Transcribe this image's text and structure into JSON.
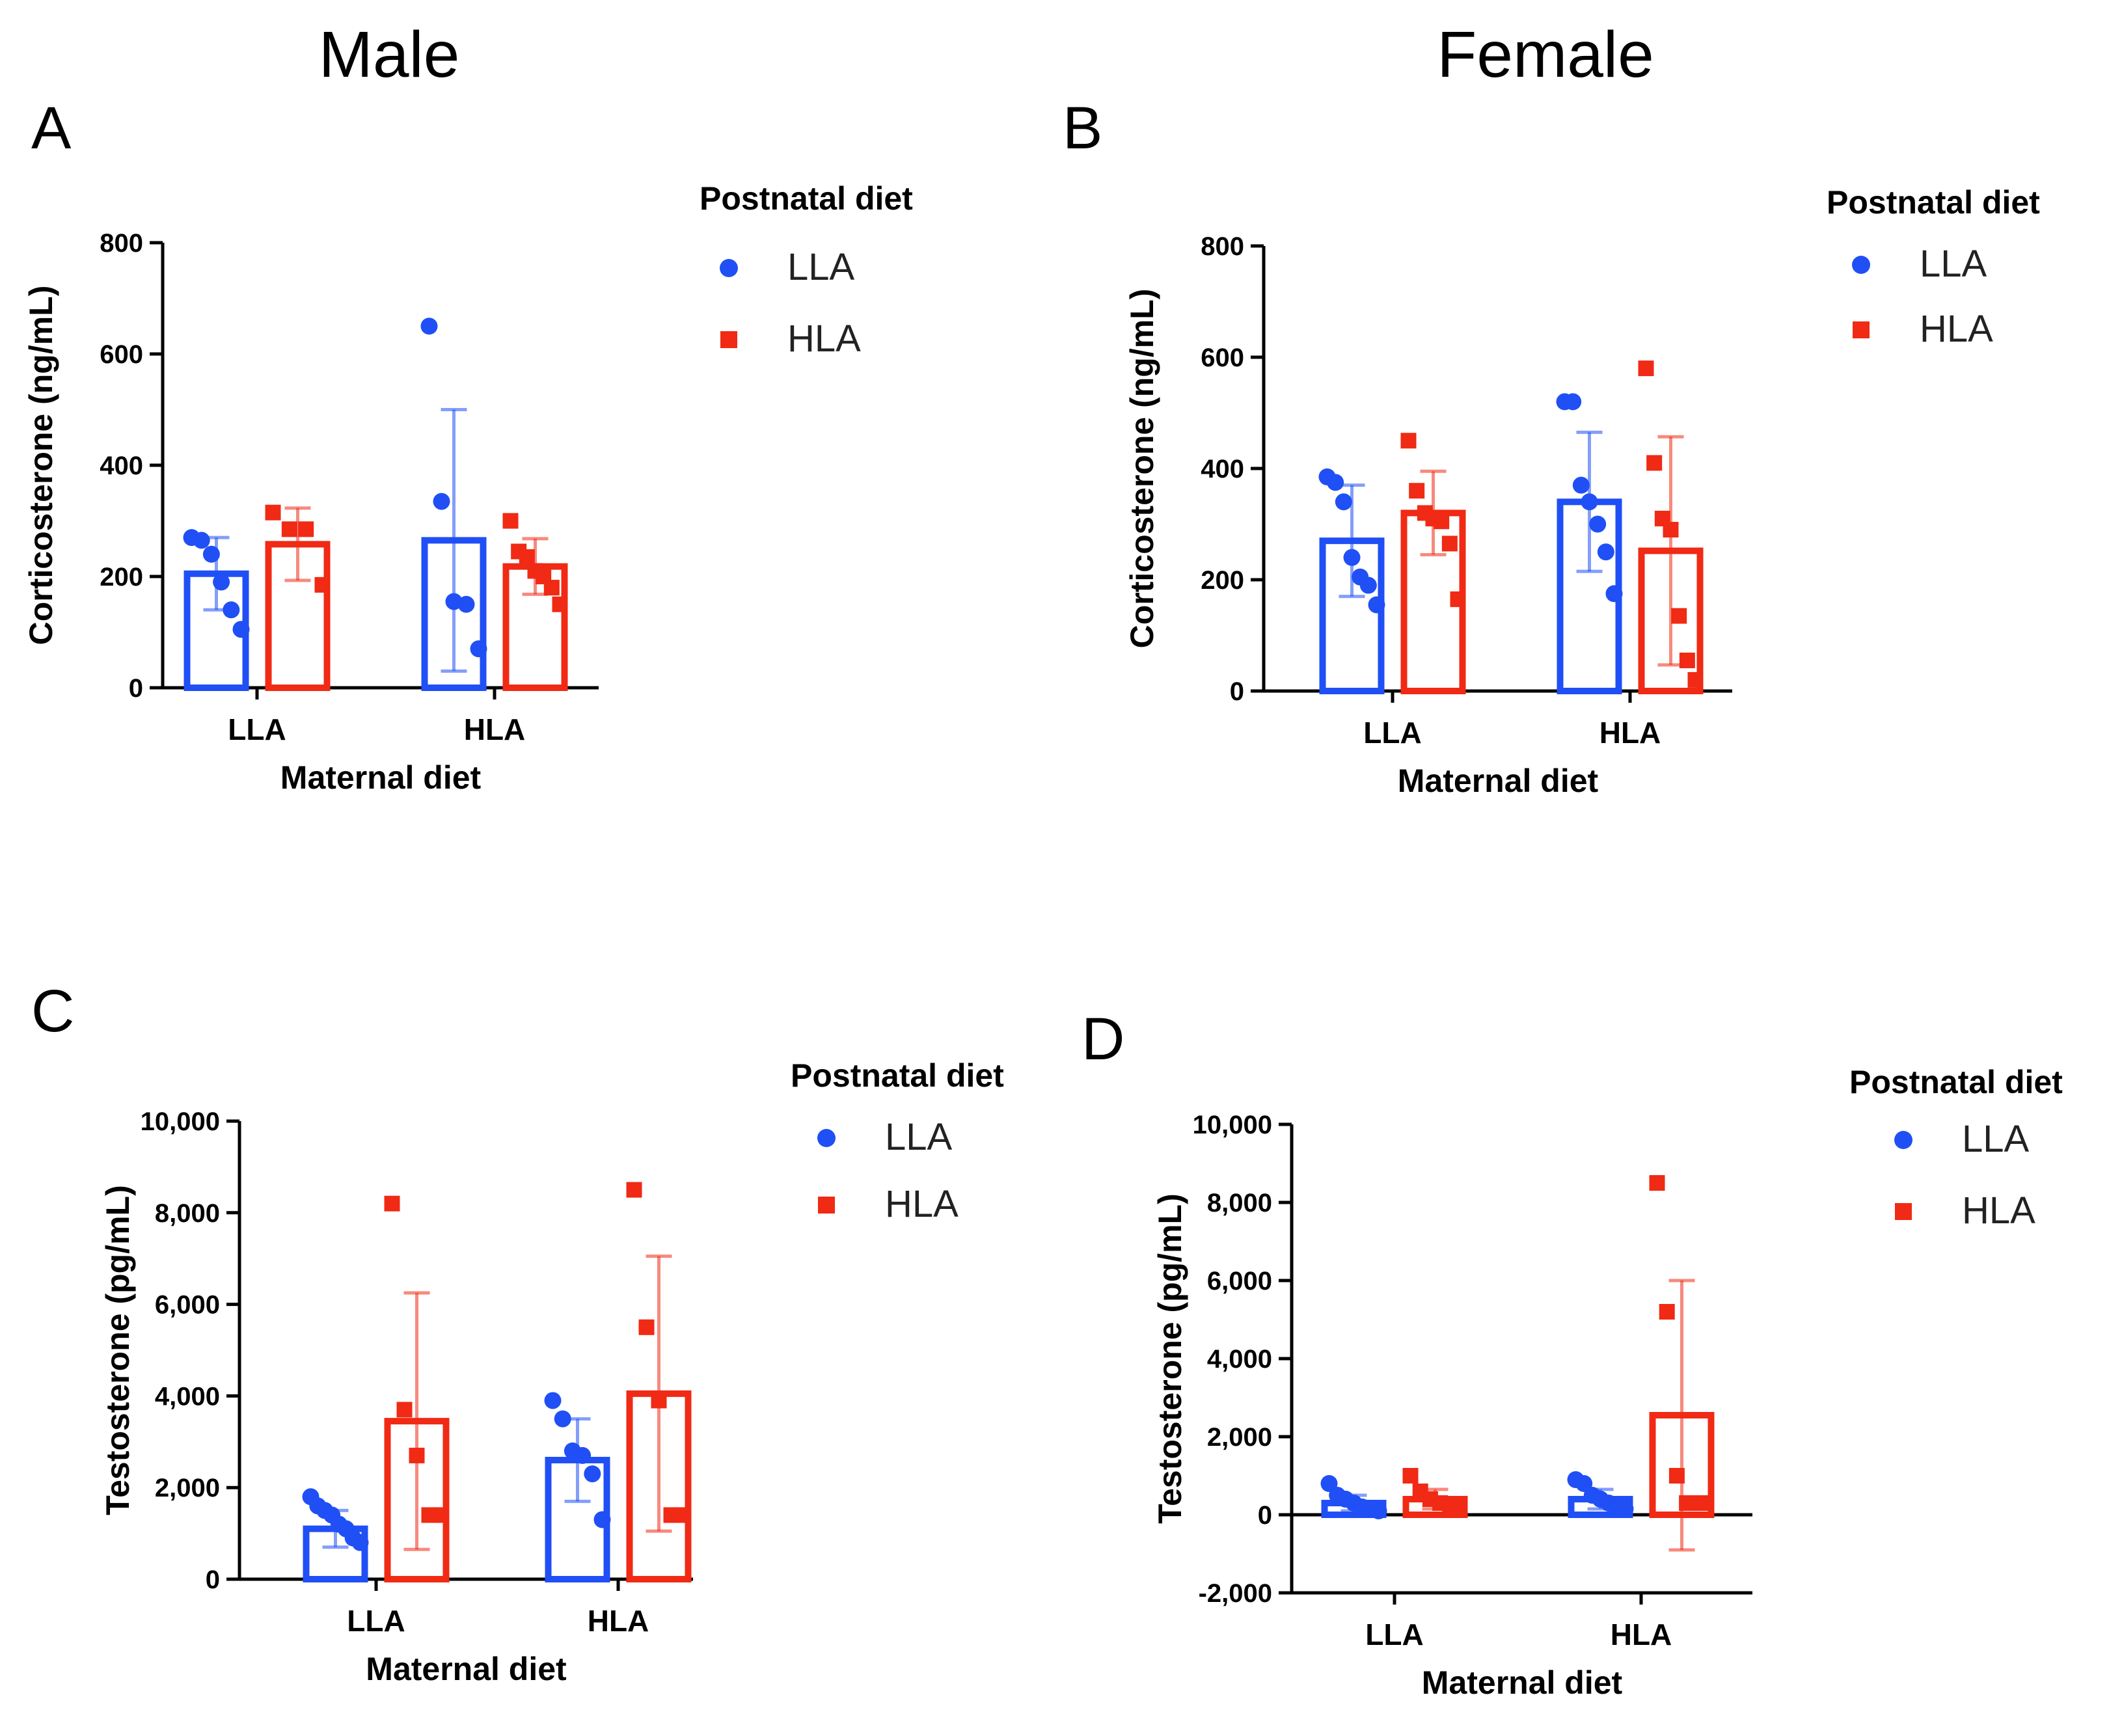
{
  "headings": {
    "male": "Male",
    "female": "Female"
  },
  "colors": {
    "LLA": "#1f4ff5",
    "HLA": "#f02a14"
  },
  "chart_data": [
    {
      "panel": "A",
      "type": "bar",
      "ylabel": "Corticosterone (ng/mL)",
      "xlabel": "Maternal diet",
      "categories": [
        "LLA",
        "HLA"
      ],
      "ylim": [
        0,
        800
      ],
      "yticks": [
        0,
        200,
        400,
        600,
        800
      ],
      "ytick_labels": [
        "0",
        "200",
        "400",
        "600",
        "800"
      ],
      "legend_title": "Postnatal diet",
      "series": [
        {
          "name": "LLA",
          "marker": "circle",
          "means": [
            205,
            265
          ],
          "sd": [
            65,
            235
          ],
          "points": [
            [
              270,
              265,
              240,
              190,
              140,
              105
            ],
            [
              650,
              335,
              155,
              150,
              70
            ]
          ]
        },
        {
          "name": "HLA",
          "marker": "square",
          "means": [
            258,
            218
          ],
          "sd": [
            65,
            50
          ],
          "points": [
            [
              315,
              285,
              285,
              185
            ],
            [
              300,
              245,
              235,
              210,
              200,
              180,
              150
            ]
          ]
        }
      ]
    },
    {
      "panel": "B",
      "type": "bar",
      "ylabel": "Corticosterone (ng/mL)",
      "xlabel": "Maternal diet",
      "categories": [
        "LLA",
        "HLA"
      ],
      "ylim": [
        0,
        800
      ],
      "yticks": [
        0,
        200,
        400,
        600,
        800
      ],
      "ytick_labels": [
        "0",
        "200",
        "400",
        "600",
        "800"
      ],
      "legend_title": "Postnatal diet",
      "series": [
        {
          "name": "LLA",
          "marker": "circle",
          "means": [
            270,
            340
          ],
          "sd": [
            100,
            125
          ],
          "points": [
            [
              385,
              375,
              340,
              240,
              205,
              190,
              155
            ],
            [
              520,
              520,
              370,
              340,
              300,
              250,
              175
            ]
          ]
        },
        {
          "name": "HLA",
          "marker": "square",
          "means": [
            320,
            252
          ],
          "sd": [
            75,
            205
          ],
          "points": [
            [
              450,
              360,
              320,
              310,
              305,
              265,
              165
            ],
            [
              580,
              410,
              310,
              290,
              135,
              55,
              20
            ]
          ]
        }
      ]
    },
    {
      "panel": "C",
      "type": "bar",
      "ylabel": "Testosterone (pg/mL)",
      "xlabel": "Maternal diet",
      "categories": [
        "LLA",
        "HLA"
      ],
      "ylim": [
        0,
        10000
      ],
      "yticks": [
        0,
        2000,
        4000,
        6000,
        8000,
        10000
      ],
      "ytick_labels": [
        "0",
        "2,000",
        "4,000",
        "6,000",
        "8,000",
        "10,000"
      ],
      "legend_title": "Postnatal diet",
      "series": [
        {
          "name": "LLA",
          "marker": "circle",
          "means": [
            1100,
            2600
          ],
          "sd": [
            400,
            900
          ],
          "points": [
            [
              1800,
              1600,
              1500,
              1400,
              1200,
              1100,
              900,
              800
            ],
            [
              3900,
              3500,
              2800,
              2700,
              2300,
              1300
            ]
          ]
        },
        {
          "name": "HLA",
          "marker": "square",
          "means": [
            3450,
            4050
          ],
          "sd": [
            2800,
            3000
          ],
          "points": [
            [
              8200,
              3700,
              2700,
              1400,
              1400
            ],
            [
              8500,
              5500,
              3900,
              1400,
              1400
            ]
          ]
        }
      ]
    },
    {
      "panel": "D",
      "type": "bar",
      "ylabel": "Testosterone (pg/mL)",
      "xlabel": "Maternal diet",
      "categories": [
        "LLA",
        "HLA"
      ],
      "ylim": [
        -2000,
        10000
      ],
      "yticks": [
        -2000,
        0,
        2000,
        4000,
        6000,
        8000,
        10000
      ],
      "ytick_labels": [
        "-2,000",
        "0",
        "2,000",
        "4,000",
        "6,000",
        "8,000",
        "10,000"
      ],
      "legend_title": "Postnatal diet",
      "series": [
        {
          "name": "LLA",
          "marker": "circle",
          "means": [
            300,
            400
          ],
          "sd": [
            200,
            250
          ],
          "points": [
            [
              800,
              500,
              400,
              300,
              200,
              150,
              100
            ],
            [
              900,
              800,
              500,
              400,
              300,
              200,
              150
            ]
          ]
        },
        {
          "name": "HLA",
          "marker": "square",
          "means": [
            400,
            2550
          ],
          "sd": [
            250,
            3450
          ],
          "points": [
            [
              1000,
              600,
              400,
              300,
              200,
              150
            ],
            [
              8500,
              5200,
              1000,
              300,
              300,
              300
            ]
          ]
        }
      ]
    }
  ]
}
